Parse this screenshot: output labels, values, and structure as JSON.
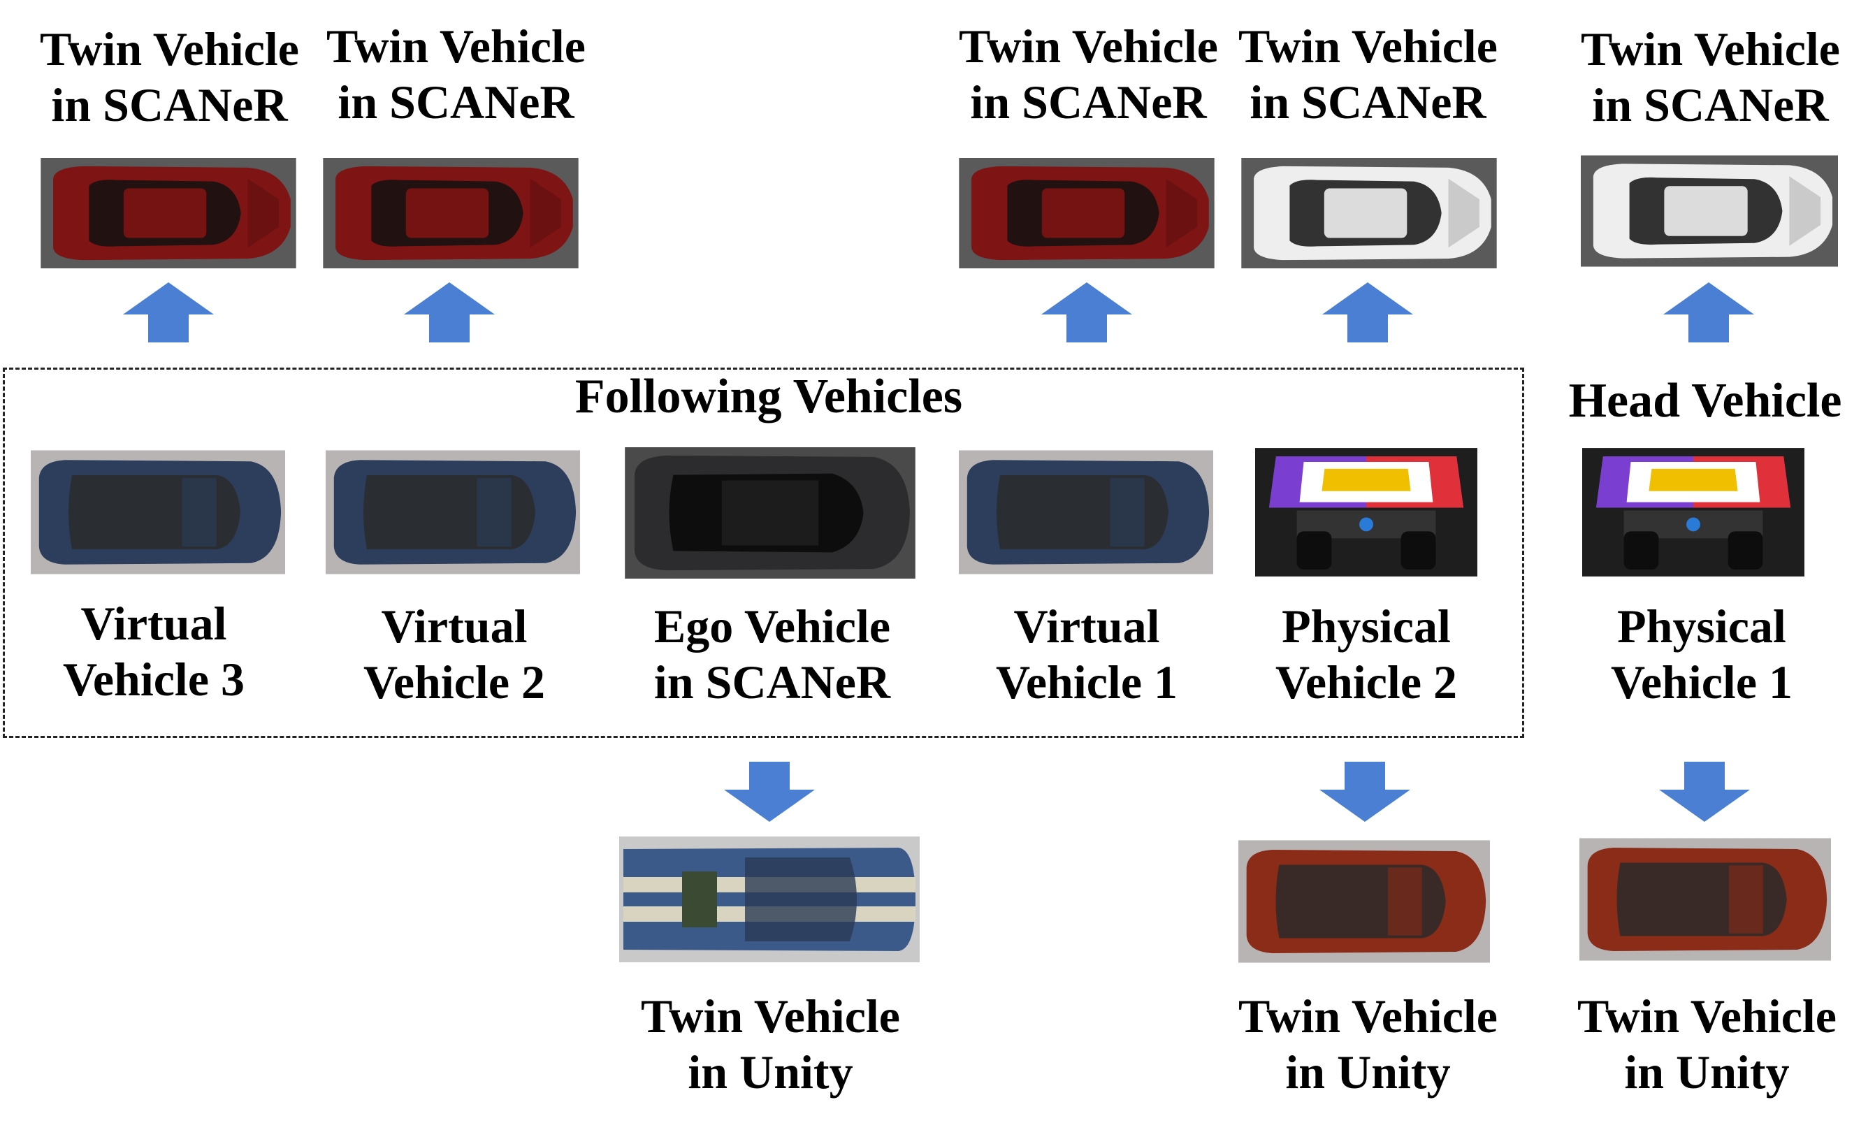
{
  "colors": {
    "arrow": "#4a7fd4",
    "red_car": "#7e1414",
    "white_car": "#eeeeee",
    "blue_car": "#2c3e5c",
    "ego_car": "#2c2c2e",
    "rust_car": "#8a2c18",
    "muscle_car": "#3b5a8a",
    "stripe": "#d9d4bf"
  },
  "group": {
    "title": "Following Vehicles"
  },
  "head": {
    "title": "Head Vehicle"
  },
  "vehicles": [
    {
      "line1": "Virtual",
      "line2": "Vehicle 3",
      "icon": "virtual-car-icon"
    },
    {
      "line1": "Virtual",
      "line2": "Vehicle 2",
      "icon": "virtual-car-icon"
    },
    {
      "line1": "Ego Vehicle",
      "line2": "in SCANeR",
      "icon": "ego-car-icon"
    },
    {
      "line1": "Virtual",
      "line2": "Vehicle 1",
      "icon": "virtual-car-icon"
    },
    {
      "line1": "Physical",
      "line2": "Vehicle 2",
      "icon": "robot-car-icon"
    },
    {
      "line1": "Physical",
      "line2": "Vehicle 1",
      "icon": "robot-car-icon"
    }
  ],
  "twins_scaner": [
    {
      "line1": "Twin Vehicle",
      "line2": "in SCANeR",
      "icon": "red-sedan-icon"
    },
    {
      "line1": "Twin Vehicle",
      "line2": "in SCANeR",
      "icon": "red-sedan-icon"
    },
    {
      "line1": "Twin Vehicle",
      "line2": "in SCANeR",
      "icon": "red-sedan-icon"
    },
    {
      "line1": "Twin Vehicle",
      "line2": "in SCANeR",
      "icon": "white-sedan-icon"
    },
    {
      "line1": "Twin Vehicle",
      "line2": "in SCANeR",
      "icon": "white-sedan-icon"
    }
  ],
  "twins_unity": [
    {
      "line1": "Twin Vehicle",
      "line2": "in Unity",
      "icon": "muscle-car-icon"
    },
    {
      "line1": "Twin Vehicle",
      "line2": "in Unity",
      "icon": "rust-car-icon"
    },
    {
      "line1": "Twin Vehicle",
      "line2": "in Unity",
      "icon": "rust-car-icon"
    }
  ]
}
